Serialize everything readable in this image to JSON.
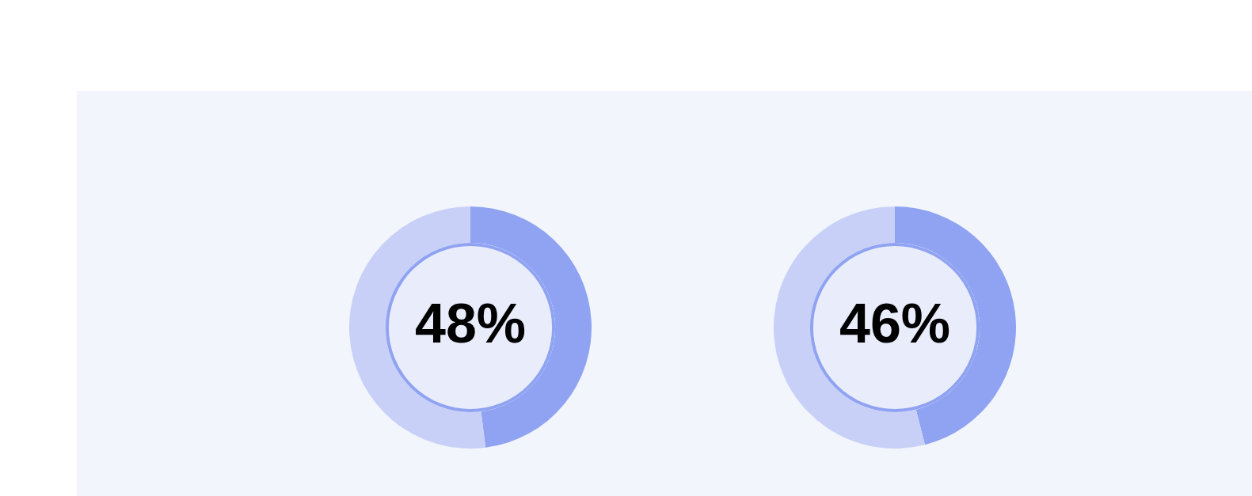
{
  "chart_data": [
    {
      "type": "donut",
      "categories": [
        null,
        null
      ],
      "values": [
        48,
        52
      ],
      "colors": [
        "#8fa3f2",
        "#c8d0f7"
      ],
      "value_labels": [
        "48%",
        null
      ]
    },
    {
      "type": "donut",
      "categories": [
        null,
        null
      ],
      "values": [
        46,
        54
      ],
      "colors": [
        "#8fa3f2",
        "#c8d0f7"
      ],
      "value_labels": [
        "46%",
        null
      ]
    }
  ]
}
